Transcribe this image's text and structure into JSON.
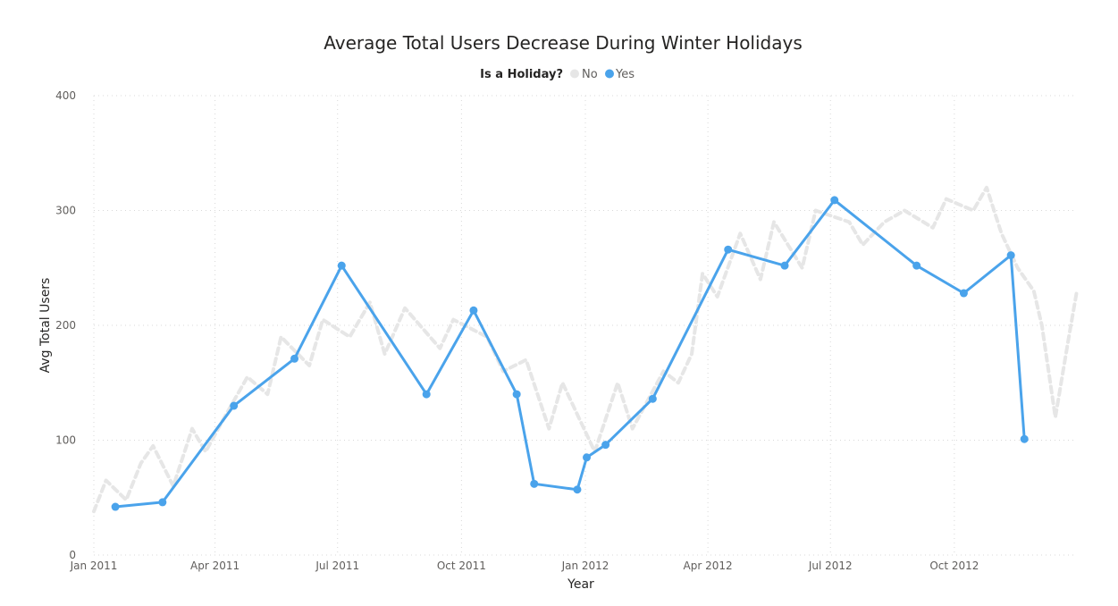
{
  "chart_data": {
    "type": "line",
    "title": "Average Total Users Decrease During Winter Holidays",
    "xlabel": "Year",
    "ylabel": "Avg Total Users",
    "legend": {
      "title": "Is a Holiday?",
      "placement": "top-center",
      "items": [
        "No",
        "Yes"
      ]
    },
    "ylim": [
      0,
      400
    ],
    "yticks": [
      0,
      100,
      200,
      300,
      400
    ],
    "xlim": [
      "2011-01-01",
      "2012-12-31"
    ],
    "xticks": [
      {
        "date": "2011-01-01",
        "label": "Jan 2011"
      },
      {
        "date": "2011-04-01",
        "label": "Apr 2011"
      },
      {
        "date": "2011-07-01",
        "label": "Jul 2011"
      },
      {
        "date": "2011-10-01",
        "label": "Oct 2011"
      },
      {
        "date": "2012-01-01",
        "label": "Jan 2012"
      },
      {
        "date": "2012-04-01",
        "label": "Apr 2012"
      },
      {
        "date": "2012-07-01",
        "label": "Jul 2012"
      },
      {
        "date": "2012-10-01",
        "label": "Oct 2012"
      }
    ],
    "grid": true,
    "colors": {
      "No": "#e6e6e6",
      "Yes": "#4aa3eb"
    },
    "series": [
      {
        "name": "Yes",
        "x": [
          "2011-01-17",
          "2011-02-21",
          "2011-04-15",
          "2011-05-30",
          "2011-07-04",
          "2011-09-05",
          "2011-10-10",
          "2011-11-11",
          "2011-11-24",
          "2011-12-26",
          "2012-01-02",
          "2012-01-16",
          "2012-02-20",
          "2012-04-16",
          "2012-05-28",
          "2012-07-04",
          "2012-09-03",
          "2012-10-08",
          "2012-11-12",
          "2012-11-22"
        ],
        "values": [
          42,
          46,
          130,
          171,
          252,
          140,
          213,
          140,
          62,
          57,
          85,
          96,
          136,
          266,
          252,
          309,
          252,
          228,
          261,
          101
        ]
      },
      {
        "name": "No",
        "x": [
          "2011-01-01",
          "2011-01-10",
          "2011-01-25",
          "2011-02-05",
          "2011-02-14",
          "2011-03-01",
          "2011-03-15",
          "2011-03-25",
          "2011-04-08",
          "2011-04-25",
          "2011-05-10",
          "2011-05-20",
          "2011-06-10",
          "2011-06-20",
          "2011-07-10",
          "2011-07-25",
          "2011-08-05",
          "2011-08-20",
          "2011-09-15",
          "2011-09-25",
          "2011-10-20",
          "2011-11-01",
          "2011-11-18",
          "2011-12-05",
          "2011-12-15",
          "2012-01-08",
          "2012-01-25",
          "2012-02-05",
          "2012-02-28",
          "2012-03-10",
          "2012-03-20",
          "2012-03-28",
          "2012-04-08",
          "2012-04-25",
          "2012-05-10",
          "2012-05-20",
          "2012-06-10",
          "2012-06-20",
          "2012-07-15",
          "2012-07-25",
          "2012-08-10",
          "2012-08-25",
          "2012-09-15",
          "2012-09-25",
          "2012-10-15",
          "2012-10-25",
          "2012-11-05",
          "2012-11-17",
          "2012-11-29",
          "2012-12-05",
          "2012-12-15",
          "2012-12-25",
          "2012-12-31"
        ],
        "values": [
          38,
          65,
          48,
          80,
          95,
          60,
          110,
          90,
          120,
          155,
          140,
          190,
          165,
          205,
          190,
          220,
          175,
          215,
          180,
          205,
          190,
          160,
          170,
          110,
          150,
          90,
          150,
          110,
          160,
          150,
          175,
          245,
          225,
          280,
          240,
          290,
          250,
          300,
          290,
          270,
          290,
          300,
          285,
          310,
          300,
          320,
          280,
          250,
          230,
          200,
          120,
          190,
          230
        ]
      }
    ]
  }
}
